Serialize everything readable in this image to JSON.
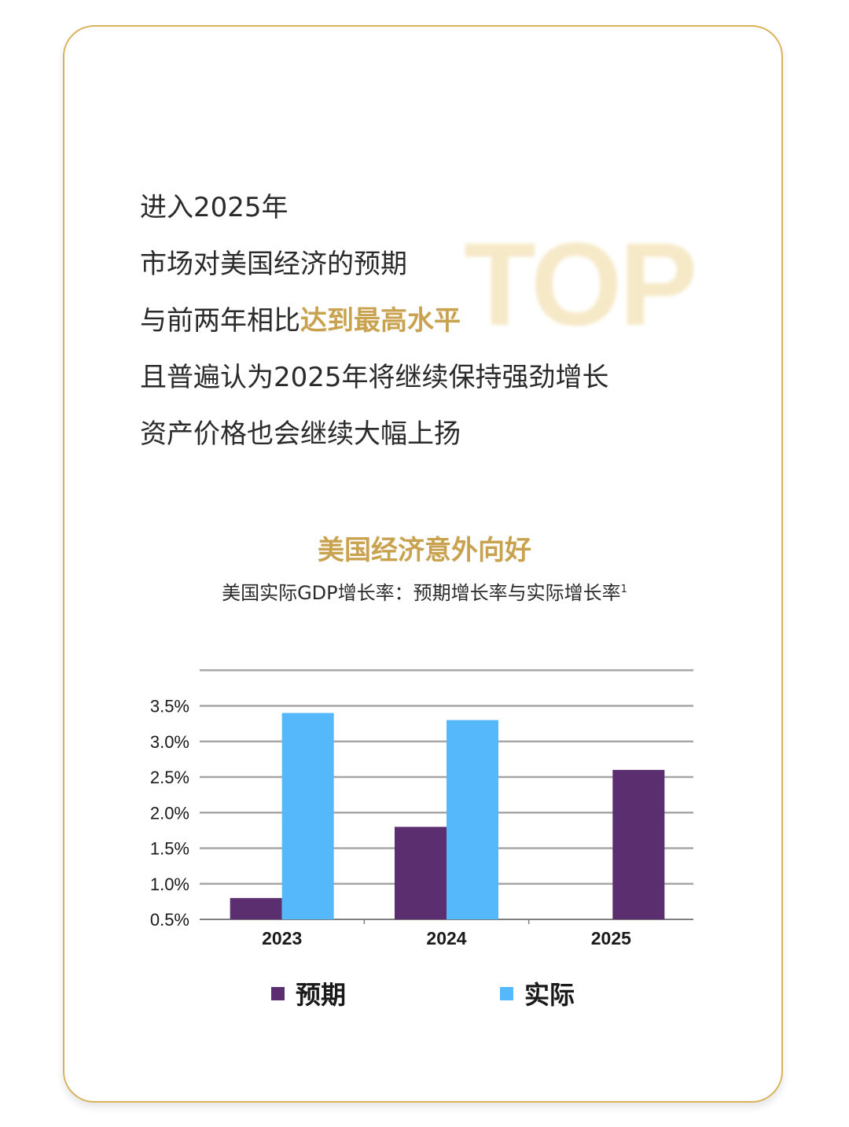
{
  "watermark": "TOP",
  "intro": {
    "line1": "进入2025年",
    "line2": "市场对美国经济的预期",
    "line3_prefix": "与前两年相比",
    "line3_highlight": "达到最高水平",
    "line4": "且普遍认为2025年将继续保持强劲增长",
    "line5": "资产价格也会继续大幅上扬"
  },
  "colors": {
    "gold": "#c9a24f",
    "border": "#d9b25c",
    "expected": "#5b2e6f",
    "actual": "#54b8fb",
    "grid": "#a6a6a6"
  },
  "chart_data": {
    "type": "bar",
    "title": "美国经济意外向好",
    "subtitle": "美国实际GDP增长率：预期增长率与实际增长率",
    "subtitle_note": "1",
    "categories": [
      "2023",
      "2024",
      "2025"
    ],
    "series": [
      {
        "name": "预期",
        "values": [
          0.8,
          1.8,
          2.6
        ]
      },
      {
        "name": "实际",
        "values": [
          3.4,
          3.3,
          null
        ]
      }
    ],
    "ylim": [
      0.5,
      4.0
    ],
    "yticks": [
      "0.5%",
      "1.0%",
      "1.5%",
      "2.0%",
      "2.5%",
      "3.0%",
      "3.5%"
    ],
    "grid": true,
    "legend_position": "bottom"
  }
}
